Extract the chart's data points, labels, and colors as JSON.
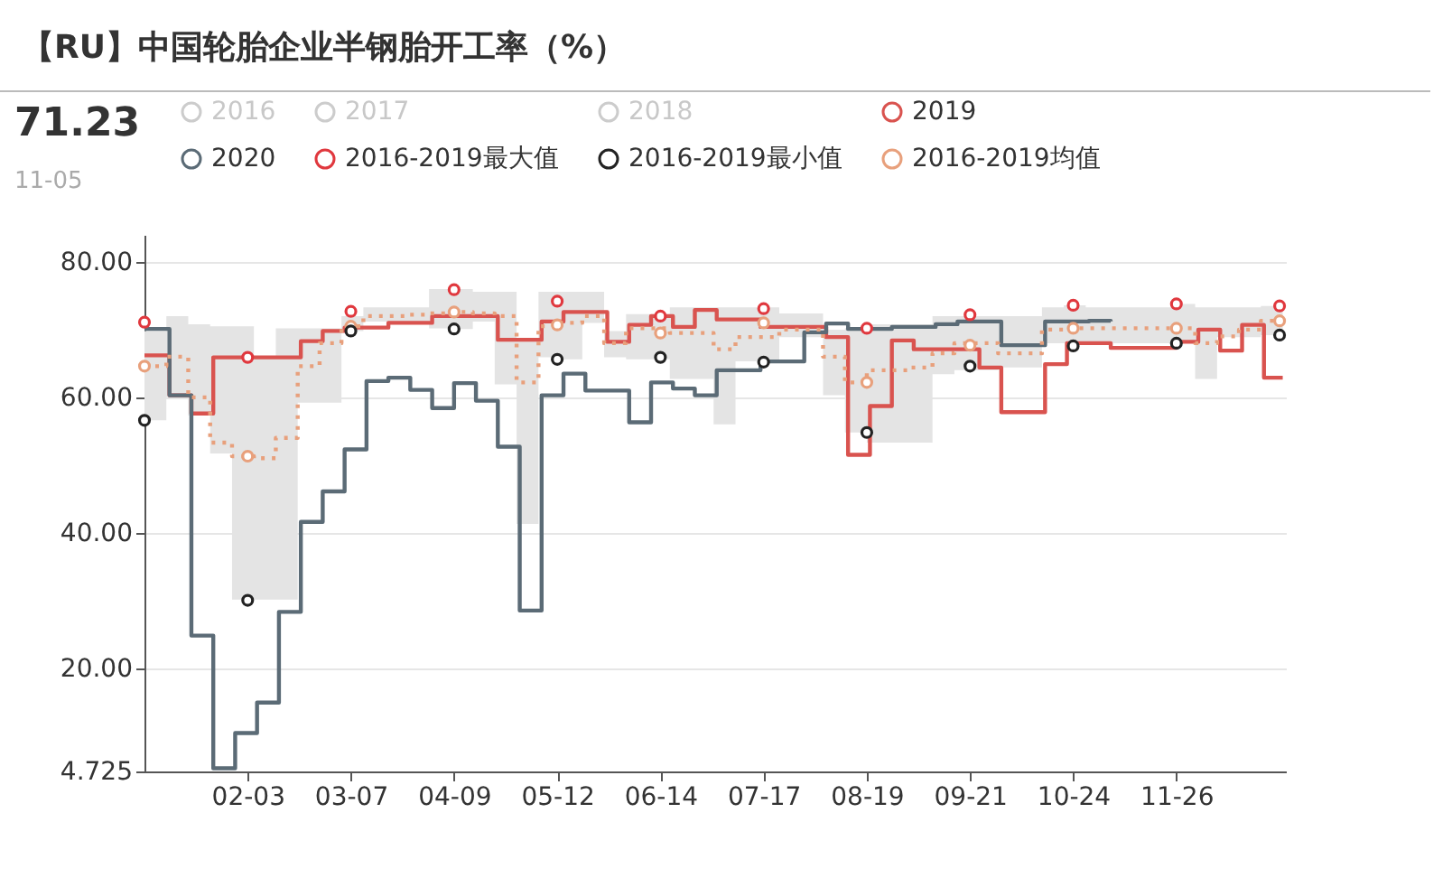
{
  "chart_data": {
    "type": "step",
    "title": "【RU】中国轮胎企业半钢胎开工率（%）",
    "annotations": [
      "71.23",
      "11-05"
    ],
    "xlim": [
      "--01-01",
      "--12-31"
    ],
    "xticks": [
      {
        "value": "--02-03",
        "label": "02-03"
      },
      {
        "value": "--03-07",
        "label": "03-07"
      },
      {
        "value": "--04-09",
        "label": "04-09"
      },
      {
        "value": "--05-12",
        "label": "05-12"
      },
      {
        "value": "--06-14",
        "label": "06-14"
      },
      {
        "value": "--07-17",
        "label": "07-17"
      },
      {
        "value": "--08-19",
        "label": "08-19"
      },
      {
        "value": "--09-21",
        "label": "09-21"
      },
      {
        "value": "--10-24",
        "label": "10-24"
      },
      {
        "value": "--11-26",
        "label": "11-26"
      }
    ],
    "ylim": [
      4.725,
      84
    ],
    "yticks": [
      {
        "value": 4.725,
        "label": "4.725"
      },
      {
        "value": 20,
        "label": "20.00"
      },
      {
        "value": 40,
        "label": "40.00"
      },
      {
        "value": 60,
        "label": "60.00"
      },
      {
        "value": 80,
        "label": "80.00"
      }
    ],
    "grid": "y",
    "legend": "top",
    "marker": "none",
    "series": [
      {
        "name": "2016",
        "type": "line",
        "color": "#cccccc"
      },
      {
        "name": "2017",
        "type": "line",
        "color": "#cccccc"
      },
      {
        "name": "2018",
        "type": "line",
        "color": "#cccccc"
      },
      {
        "name": "2019",
        "color": "#d9534f",
        "x": [
          "--01-01",
          "--01-09",
          "--01-16",
          "--01-23",
          "--02-20",
          "--02-27",
          "--03-05",
          "--03-19",
          "--04-02",
          "--04-23",
          "--05-07",
          "--05-14",
          "--05-28",
          "--06-04",
          "--06-11",
          "--06-18",
          "--06-25",
          "--07-02",
          "--07-16",
          "--08-06",
          "--08-13",
          "--08-20",
          "--08-27",
          "--09-03",
          "--09-24",
          "--10-01",
          "--10-15",
          "--10-22",
          "--11-05",
          "--11-26",
          "--12-03",
          "--12-10",
          "--12-17",
          "--12-24",
          "--12-30"
        ],
        "values": [
          66.2,
          60.3,
          57.6,
          65.9,
          68.3,
          69.8,
          70.3,
          71,
          72,
          68.5,
          71.2,
          72.6,
          68.2,
          70.7,
          72,
          70.4,
          72.9,
          71.5,
          70.4,
          68.9,
          51.5,
          58.7,
          68.4,
          67.1,
          64.4,
          57.8,
          64.9,
          68,
          67.3,
          68.2,
          70,
          66.9,
          70.7,
          62.9,
          62.9
        ]
      },
      {
        "name": "2020",
        "color": "#5b6b76",
        "x": [
          "--01-01",
          "--01-09",
          "--01-16",
          "--01-23",
          "--01-30",
          "--02-06",
          "--02-13",
          "--02-20",
          "--02-27",
          "--03-05",
          "--03-12",
          "--03-19",
          "--03-26",
          "--04-02",
          "--04-09",
          "--04-16",
          "--04-23",
          "--04-30",
          "--05-07",
          "--05-14",
          "--05-21",
          "--06-04",
          "--06-11",
          "--06-18",
          "--06-25",
          "--07-02",
          "--07-16",
          "--07-30",
          "--08-06",
          "--08-13",
          "--08-27",
          "--09-10",
          "--09-17",
          "--10-01",
          "--10-15",
          "--10-29",
          "--11-05"
        ],
        "values": [
          70.1,
          60.3,
          24.8,
          5.2,
          10.4,
          14.9,
          28.3,
          41.6,
          46.1,
          52.3,
          62.4,
          62.9,
          61.1,
          58.4,
          62.1,
          59.5,
          52.7,
          28.5,
          60.3,
          63.5,
          61,
          56.3,
          62.2,
          61.3,
          60.3,
          64,
          65.3,
          69.6,
          70.9,
          70.1,
          70.4,
          70.8,
          71.2,
          67.7,
          71.2,
          71.3,
          71.23
        ]
      },
      {
        "name": "2016-2019最大值",
        "type": "scatter",
        "marker": "circle",
        "color": "#e0383e",
        "x": [
          "--01-01",
          "--02-03",
          "--03-07",
          "--04-09",
          "--05-12",
          "--06-14",
          "--07-17",
          "--08-19",
          "--09-21",
          "--10-24",
          "--11-26",
          "--12-29"
        ],
        "values": [
          71.1,
          65.9,
          72.7,
          75.9,
          74.2,
          72,
          73.1,
          70.2,
          72.2,
          73.6,
          73.8,
          73.5
        ]
      },
      {
        "name": "2016-2019最小值",
        "type": "scatter",
        "marker": "circle",
        "color": "#222222",
        "x": [
          "--01-01",
          "--02-03",
          "--03-07",
          "--04-09",
          "--05-12",
          "--06-14",
          "--07-17",
          "--08-19",
          "--09-21",
          "--10-24",
          "--11-26",
          "--12-29"
        ],
        "values": [
          56.6,
          30,
          69.8,
          70.1,
          65.6,
          65.9,
          65.2,
          54.8,
          64.6,
          67.6,
          68,
          69.2
        ]
      },
      {
        "name": "2016-2019均值",
        "color": "#e8a07c",
        "line_style": "dotted",
        "x": [
          "--01-01",
          "--01-08",
          "--01-15",
          "--01-22",
          "--01-29",
          "--02-05",
          "--02-12",
          "--02-19",
          "--02-26",
          "--03-04",
          "--03-11",
          "--03-18",
          "--03-25",
          "--04-01",
          "--04-08",
          "--04-15",
          "--04-22",
          "--04-29",
          "--05-06",
          "--05-13",
          "--05-20",
          "--05-27",
          "--06-03",
          "--06-10",
          "--06-17",
          "--06-24",
          "--07-01",
          "--07-08",
          "--07-15",
          "--07-22",
          "--07-29",
          "--08-05",
          "--08-12",
          "--08-19",
          "--08-26",
          "--09-02",
          "--09-09",
          "--09-16",
          "--09-23",
          "--09-30",
          "--10-07",
          "--10-14",
          "--10-21",
          "--10-28",
          "--11-04",
          "--11-11",
          "--11-18",
          "--11-25",
          "--12-02",
          "--12-09",
          "--12-16",
          "--12-23",
          "--12-30"
        ],
        "values": [
          64.6,
          66,
          60,
          53.3,
          51.3,
          51,
          54,
          64.6,
          68,
          70.5,
          72,
          72,
          72.2,
          72.4,
          72.6,
          72.4,
          72,
          62.2,
          70.5,
          71,
          72,
          68,
          70.2,
          70.2,
          69.5,
          69.5,
          67.1,
          68.9,
          68.9,
          70,
          70,
          66,
          62.2,
          64,
          64,
          64.4,
          66.5,
          68,
          68,
          66.5,
          66.5,
          70,
          70.2,
          70.2,
          70.2,
          70.2,
          70.2,
          70.2,
          68,
          69,
          70,
          71.3,
          71.3
        ],
        "lower": [
          56.6,
          60,
          57.3,
          51.7,
          30.1,
          30.1,
          30.1,
          59.2,
          59.2,
          69.8,
          71.2,
          71.2,
          71.2,
          70.2,
          70.1,
          71.2,
          61.9,
          41.3,
          65.9,
          65.6,
          71,
          65.9,
          65.6,
          65.6,
          62.7,
          62.7,
          56,
          65.3,
          65.3,
          68.9,
          68.9,
          60.3,
          54.8,
          53.3,
          53.3,
          53.3,
          63.4,
          64,
          64,
          64.4,
          64.4,
          68,
          68,
          68,
          68,
          68,
          68,
          68,
          62.7,
          68.9,
          68.9,
          69.2,
          69.2
        ],
        "upper": [
          69.8,
          72,
          70.8,
          70.5,
          70.5,
          66,
          70.2,
          70.2,
          70.2,
          72,
          73.3,
          73.3,
          73.3,
          76,
          76,
          75.6,
          75.6,
          68.5,
          75.6,
          75.6,
          75.6,
          69.8,
          72.3,
          72.3,
          73.3,
          73.3,
          73.3,
          73.3,
          73.3,
          72.4,
          72.4,
          70,
          70.2,
          70.8,
          70.8,
          70.8,
          72,
          72,
          72,
          72,
          72,
          73.3,
          73.6,
          73.3,
          73.3,
          73.3,
          73.3,
          73.8,
          73.3,
          73.3,
          73.3,
          73.5,
          73.5
        ]
      },
      {
        "type": "scatter",
        "marker": "circle",
        "color": "#e8a07c",
        "x": [
          "--01-01",
          "--02-03",
          "--03-07",
          "--04-09",
          "--05-12",
          "--06-14",
          "--07-17",
          "--08-19",
          "--09-21",
          "--10-24",
          "--11-26",
          "--12-29"
        ],
        "values": [
          64.6,
          51.3,
          70.5,
          72.6,
          70.7,
          69.5,
          71,
          62.2,
          67.7,
          70.2,
          70.2,
          71.3
        ]
      }
    ]
  }
}
